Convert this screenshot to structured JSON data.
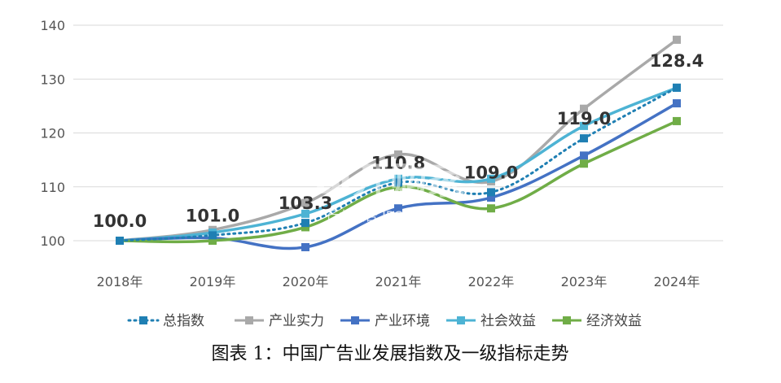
{
  "chart_data": {
    "type": "line",
    "title": "",
    "caption": "图表 1：中国广告业发展指数及一级指标走势",
    "xlabel": "",
    "ylabel": "",
    "categories": [
      "2018年",
      "2019年",
      "2020年",
      "2021年",
      "2022年",
      "2023年",
      "2024年"
    ],
    "ylim": [
      100,
      140
    ],
    "yticks": [
      100,
      110,
      120,
      130,
      140
    ],
    "grid": true,
    "legend_position": "bottom",
    "series": [
      {
        "name": "总指数",
        "values": [
          100.0,
          101.0,
          103.3,
          110.8,
          109.0,
          119.0,
          128.4
        ],
        "color": "#1f7fb3",
        "dash": "dotted"
      },
      {
        "name": "产业实力",
        "values": [
          100.0,
          102.0,
          107.0,
          116.0,
          111.0,
          124.5,
          137.3
        ],
        "color": "#a9a9a9",
        "dash": "solid"
      },
      {
        "name": "产业环境",
        "values": [
          100.0,
          100.5,
          98.8,
          106.0,
          108.0,
          115.8,
          125.5
        ],
        "color": "#4472c4",
        "dash": "solid"
      },
      {
        "name": "社会效益",
        "values": [
          100.0,
          101.5,
          105.0,
          111.5,
          111.5,
          121.3,
          128.4
        ],
        "color": "#4db3d4",
        "dash": "solid"
      },
      {
        "name": "经济效益",
        "values": [
          100.0,
          100.0,
          102.5,
          110.0,
          106.0,
          114.3,
          122.2
        ],
        "color": "#70ad47",
        "dash": "solid"
      }
    ],
    "data_labels": [
      {
        "category_index": 0,
        "text": "100.0",
        "value": 100.0
      },
      {
        "category_index": 1,
        "text": "101.0",
        "value": 101.0
      },
      {
        "category_index": 2,
        "text": "103.3",
        "value": 103.3
      },
      {
        "category_index": 3,
        "text": "110.8",
        "value": 110.8
      },
      {
        "category_index": 4,
        "text": "109.0",
        "value": 109.0
      },
      {
        "category_index": 5,
        "text": "119.0",
        "value": 119.0
      },
      {
        "category_index": 6,
        "text": "128.4",
        "value": 128.4
      }
    ],
    "watermark": {
      "main": "Ы开购家",
      "sub": "行业报告 IPOIPO.CN"
    }
  }
}
